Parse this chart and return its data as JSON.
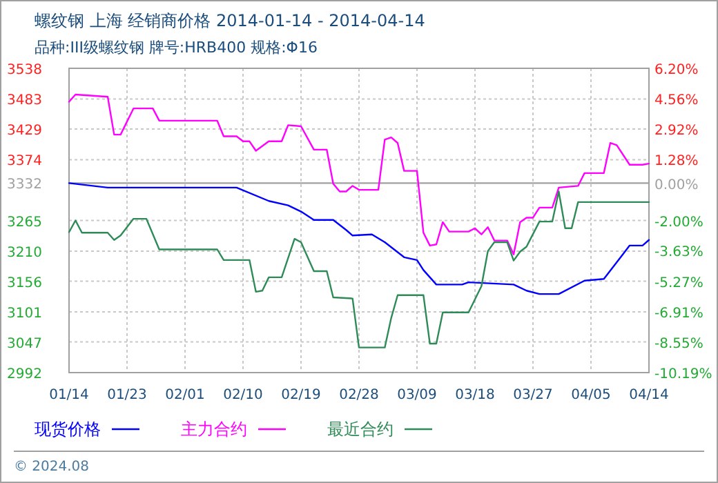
{
  "chart_data": {
    "type": "line",
    "title": "螺纹钢 上海 经销商价格 2014-01-14 - 2014-04-14",
    "subtitle": "品种:III级螺纹钢 牌号:HRB400 规格:Φ16",
    "xlim": [
      "2014-01-14",
      "2014-04-14"
    ],
    "xticks": [
      {
        "value": "2014-01-14",
        "label": "01/14"
      },
      {
        "value": "2014-01-23",
        "label": "01/23"
      },
      {
        "value": "2014-02-01",
        "label": "02/01"
      },
      {
        "value": "2014-02-10",
        "label": "02/10"
      },
      {
        "value": "2014-02-19",
        "label": "02/19"
      },
      {
        "value": "2014-02-28",
        "label": "02/28"
      },
      {
        "value": "2014-03-09",
        "label": "03/09"
      },
      {
        "value": "2014-03-18",
        "label": "03/18"
      },
      {
        "value": "2014-03-27",
        "label": "03/27"
      },
      {
        "value": "2014-04-05",
        "label": "04/05"
      },
      {
        "value": "2014-04-14",
        "label": "04/14"
      }
    ],
    "ylim": [
      2992,
      3538
    ],
    "yticks": [
      2992,
      3047,
      3101,
      3156,
      3210,
      3265,
      3332,
      3374,
      3429,
      3483,
      3538
    ],
    "y2lim": [
      -10.19,
      6.2
    ],
    "y2ticks": [
      {
        "value": -10.19,
        "label": "-10.19%"
      },
      {
        "value": -8.55,
        "label": "-8.55%"
      },
      {
        "value": -6.91,
        "label": "-6.91%"
      },
      {
        "value": -5.27,
        "label": "-5.27%"
      },
      {
        "value": -3.63,
        "label": "-3.63%"
      },
      {
        "value": -2.0,
        "label": "-2.00%"
      },
      {
        "value": 0,
        "label": "0.00%"
      },
      {
        "value": 1.28,
        "label": "1.28%"
      },
      {
        "value": 2.92,
        "label": "2.92%"
      },
      {
        "value": 4.56,
        "label": "4.56%"
      },
      {
        "value": 6.2,
        "label": "6.20%"
      }
    ],
    "grid": true,
    "legend": "bottom",
    "line_style": "solid",
    "ref_lines": [
      {
        "axis": "y",
        "value": 3332,
        "color": "#a0a0a0"
      }
    ],
    "annotations": [
      "© 2024.08"
    ],
    "series": [
      {
        "name": "现货价格",
        "color": "#0000ff",
        "x": [
          "2014-01-14",
          "2014-01-20",
          "2014-02-09",
          "2014-02-14",
          "2014-02-17",
          "2014-02-19",
          "2014-02-21",
          "2014-02-24",
          "2014-02-26",
          "2014-02-27",
          "2014-03-02",
          "2014-03-04",
          "2014-03-07",
          "2014-03-09",
          "2014-03-10",
          "2014-03-12",
          "2014-03-16",
          "2014-03-17",
          "2014-03-24",
          "2014-03-26",
          "2014-03-28",
          "2014-03-31",
          "2014-04-04",
          "2014-04-07",
          "2014-04-10",
          "2014-04-11",
          "2014-04-13",
          "2014-04-14"
        ],
        "values": [
          3332,
          3324,
          3324,
          3300,
          3292,
          3281,
          3266,
          3266,
          3248,
          3238,
          3240,
          3226,
          3199,
          3194,
          3176,
          3150,
          3150,
          3154,
          3150,
          3139,
          3133,
          3133,
          3157,
          3160,
          3205,
          3220,
          3220,
          3230
        ]
      },
      {
        "name": "主力合约",
        "color": "#ff00ff",
        "x": [
          "2014-01-14",
          "2014-01-15",
          "2014-01-20",
          "2014-01-21",
          "2014-01-22",
          "2014-01-24",
          "2014-01-27",
          "2014-01-28",
          "2014-02-06",
          "2014-02-07",
          "2014-02-09",
          "2014-02-10",
          "2014-02-11",
          "2014-02-12",
          "2014-02-14",
          "2014-02-16",
          "2014-02-17",
          "2014-02-19",
          "2014-02-21",
          "2014-02-23",
          "2014-02-24",
          "2014-02-25",
          "2014-02-26",
          "2014-02-27",
          "2014-02-28",
          "2014-03-03",
          "2014-03-04",
          "2014-03-05",
          "2014-03-06",
          "2014-03-07",
          "2014-03-09",
          "2014-03-10",
          "2014-03-11",
          "2014-03-12",
          "2014-03-13",
          "2014-03-14",
          "2014-03-17",
          "2014-03-18",
          "2014-03-19",
          "2014-03-20",
          "2014-03-21",
          "2014-03-23",
          "2014-03-24",
          "2014-03-25",
          "2014-03-26",
          "2014-03-27",
          "2014-03-28",
          "2014-03-30",
          "2014-03-31",
          "2014-04-03",
          "2014-04-04",
          "2014-04-07",
          "2014-04-08",
          "2014-04-09",
          "2014-04-11",
          "2014-04-13",
          "2014-04-14"
        ],
        "values": [
          3478,
          3491,
          3487,
          3419,
          3419,
          3466,
          3466,
          3444,
          3444,
          3416,
          3416,
          3407,
          3407,
          3390,
          3407,
          3407,
          3436,
          3434,
          3392,
          3392,
          3331,
          3317,
          3317,
          3327,
          3320,
          3320,
          3410,
          3414,
          3404,
          3354,
          3354,
          3243,
          3220,
          3222,
          3262,
          3245,
          3245,
          3251,
          3240,
          3253,
          3229,
          3229,
          3204,
          3262,
          3270,
          3270,
          3288,
          3288,
          3324,
          3327,
          3350,
          3350,
          3404,
          3400,
          3365,
          3365,
          3367
        ]
      },
      {
        "name": "最近合约",
        "color": "#2e8b57",
        "x": [
          "2014-01-14",
          "2014-01-15",
          "2014-01-16",
          "2014-01-20",
          "2014-01-21",
          "2014-01-22",
          "2014-01-24",
          "2014-01-26",
          "2014-01-28",
          "2014-02-06",
          "2014-02-07",
          "2014-02-11",
          "2014-02-12",
          "2014-02-13",
          "2014-02-14",
          "2014-02-16",
          "2014-02-18",
          "2014-02-19",
          "2014-02-21",
          "2014-02-23",
          "2014-02-24",
          "2014-02-27",
          "2014-02-28",
          "2014-03-04",
          "2014-03-05",
          "2014-03-06",
          "2014-03-10",
          "2014-03-11",
          "2014-03-12",
          "2014-03-13",
          "2014-03-17",
          "2014-03-19",
          "2014-03-20",
          "2014-03-21",
          "2014-03-23",
          "2014-03-24",
          "2014-03-25",
          "2014-03-26",
          "2014-03-28",
          "2014-03-30",
          "2014-03-31",
          "2014-04-01",
          "2014-04-02",
          "2014-04-03",
          "2014-04-14"
        ],
        "values": [
          3244,
          3265,
          3243,
          3243,
          3230,
          3238,
          3268,
          3268,
          3213,
          3213,
          3194,
          3194,
          3137,
          3139,
          3163,
          3163,
          3232,
          3226,
          3174,
          3174,
          3127,
          3125,
          3037,
          3037,
          3090,
          3131,
          3131,
          3044,
          3044,
          3100,
          3100,
          3147,
          3210,
          3226,
          3226,
          3193,
          3209,
          3218,
          3263,
          3263,
          3317,
          3251,
          3251,
          3298,
          3298
        ]
      }
    ]
  }
}
